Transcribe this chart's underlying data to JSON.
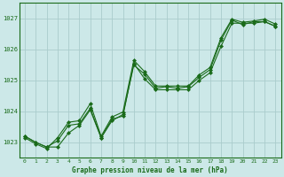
{
  "title": "Graphe pression niveau de la mer (hPa)",
  "bg_color": "#cce8e8",
  "grid_color": "#aacccc",
  "line_color": "#1a6b1a",
  "marker_color": "#1a6b1a",
  "axis_color": "#1a6b1a",
  "xlim": [
    -0.5,
    23.5
  ],
  "ylim": [
    1022.5,
    1027.5
  ],
  "yticks": [
    1023,
    1024,
    1025,
    1026,
    1027
  ],
  "xticks": [
    0,
    1,
    2,
    3,
    4,
    5,
    6,
    7,
    8,
    9,
    10,
    11,
    12,
    13,
    14,
    15,
    16,
    17,
    18,
    19,
    20,
    21,
    22,
    23
  ],
  "series1": {
    "x": [
      0,
      1,
      2,
      3,
      4,
      5,
      6,
      7,
      8,
      9,
      10,
      11,
      12,
      13,
      14,
      15,
      16,
      17,
      18,
      19,
      20,
      21,
      22,
      23
    ],
    "y": [
      1023.2,
      1023.0,
      1022.85,
      1022.85,
      1023.3,
      1023.55,
      1024.05,
      1023.15,
      1023.75,
      1023.85,
      1025.55,
      1025.05,
      1024.7,
      1024.7,
      1024.7,
      1024.7,
      1025.0,
      1025.25,
      1026.1,
      1026.85,
      1026.85,
      1026.85,
      1026.9,
      1026.75
    ]
  },
  "series2": {
    "x": [
      0,
      1,
      2,
      3,
      4,
      5,
      6,
      7,
      8,
      9,
      10,
      11,
      12,
      13,
      14,
      15,
      16,
      17,
      18,
      19,
      20,
      21,
      22,
      23
    ],
    "y": [
      1023.2,
      1023.0,
      1022.85,
      1023.05,
      1023.55,
      1023.6,
      1024.1,
      1023.15,
      1023.7,
      1023.9,
      1025.5,
      1025.2,
      1024.75,
      1024.8,
      1024.75,
      1024.8,
      1025.1,
      1025.35,
      1026.3,
      1026.95,
      1026.8,
      1026.9,
      1026.9,
      1026.75
    ]
  },
  "series3": {
    "x": [
      0,
      1,
      2,
      3,
      4,
      5,
      6,
      7,
      8,
      9,
      10,
      11,
      12,
      13,
      14,
      15,
      16,
      17,
      18,
      19,
      20,
      21,
      22,
      23
    ],
    "y": [
      1023.15,
      1022.95,
      1022.8,
      1023.15,
      1023.65,
      1023.7,
      1024.25,
      1023.2,
      1023.82,
      1023.98,
      1025.65,
      1025.28,
      1024.82,
      1024.82,
      1024.82,
      1024.82,
      1025.18,
      1025.42,
      1026.38,
      1026.98,
      1026.88,
      1026.92,
      1026.98,
      1026.82
    ]
  }
}
